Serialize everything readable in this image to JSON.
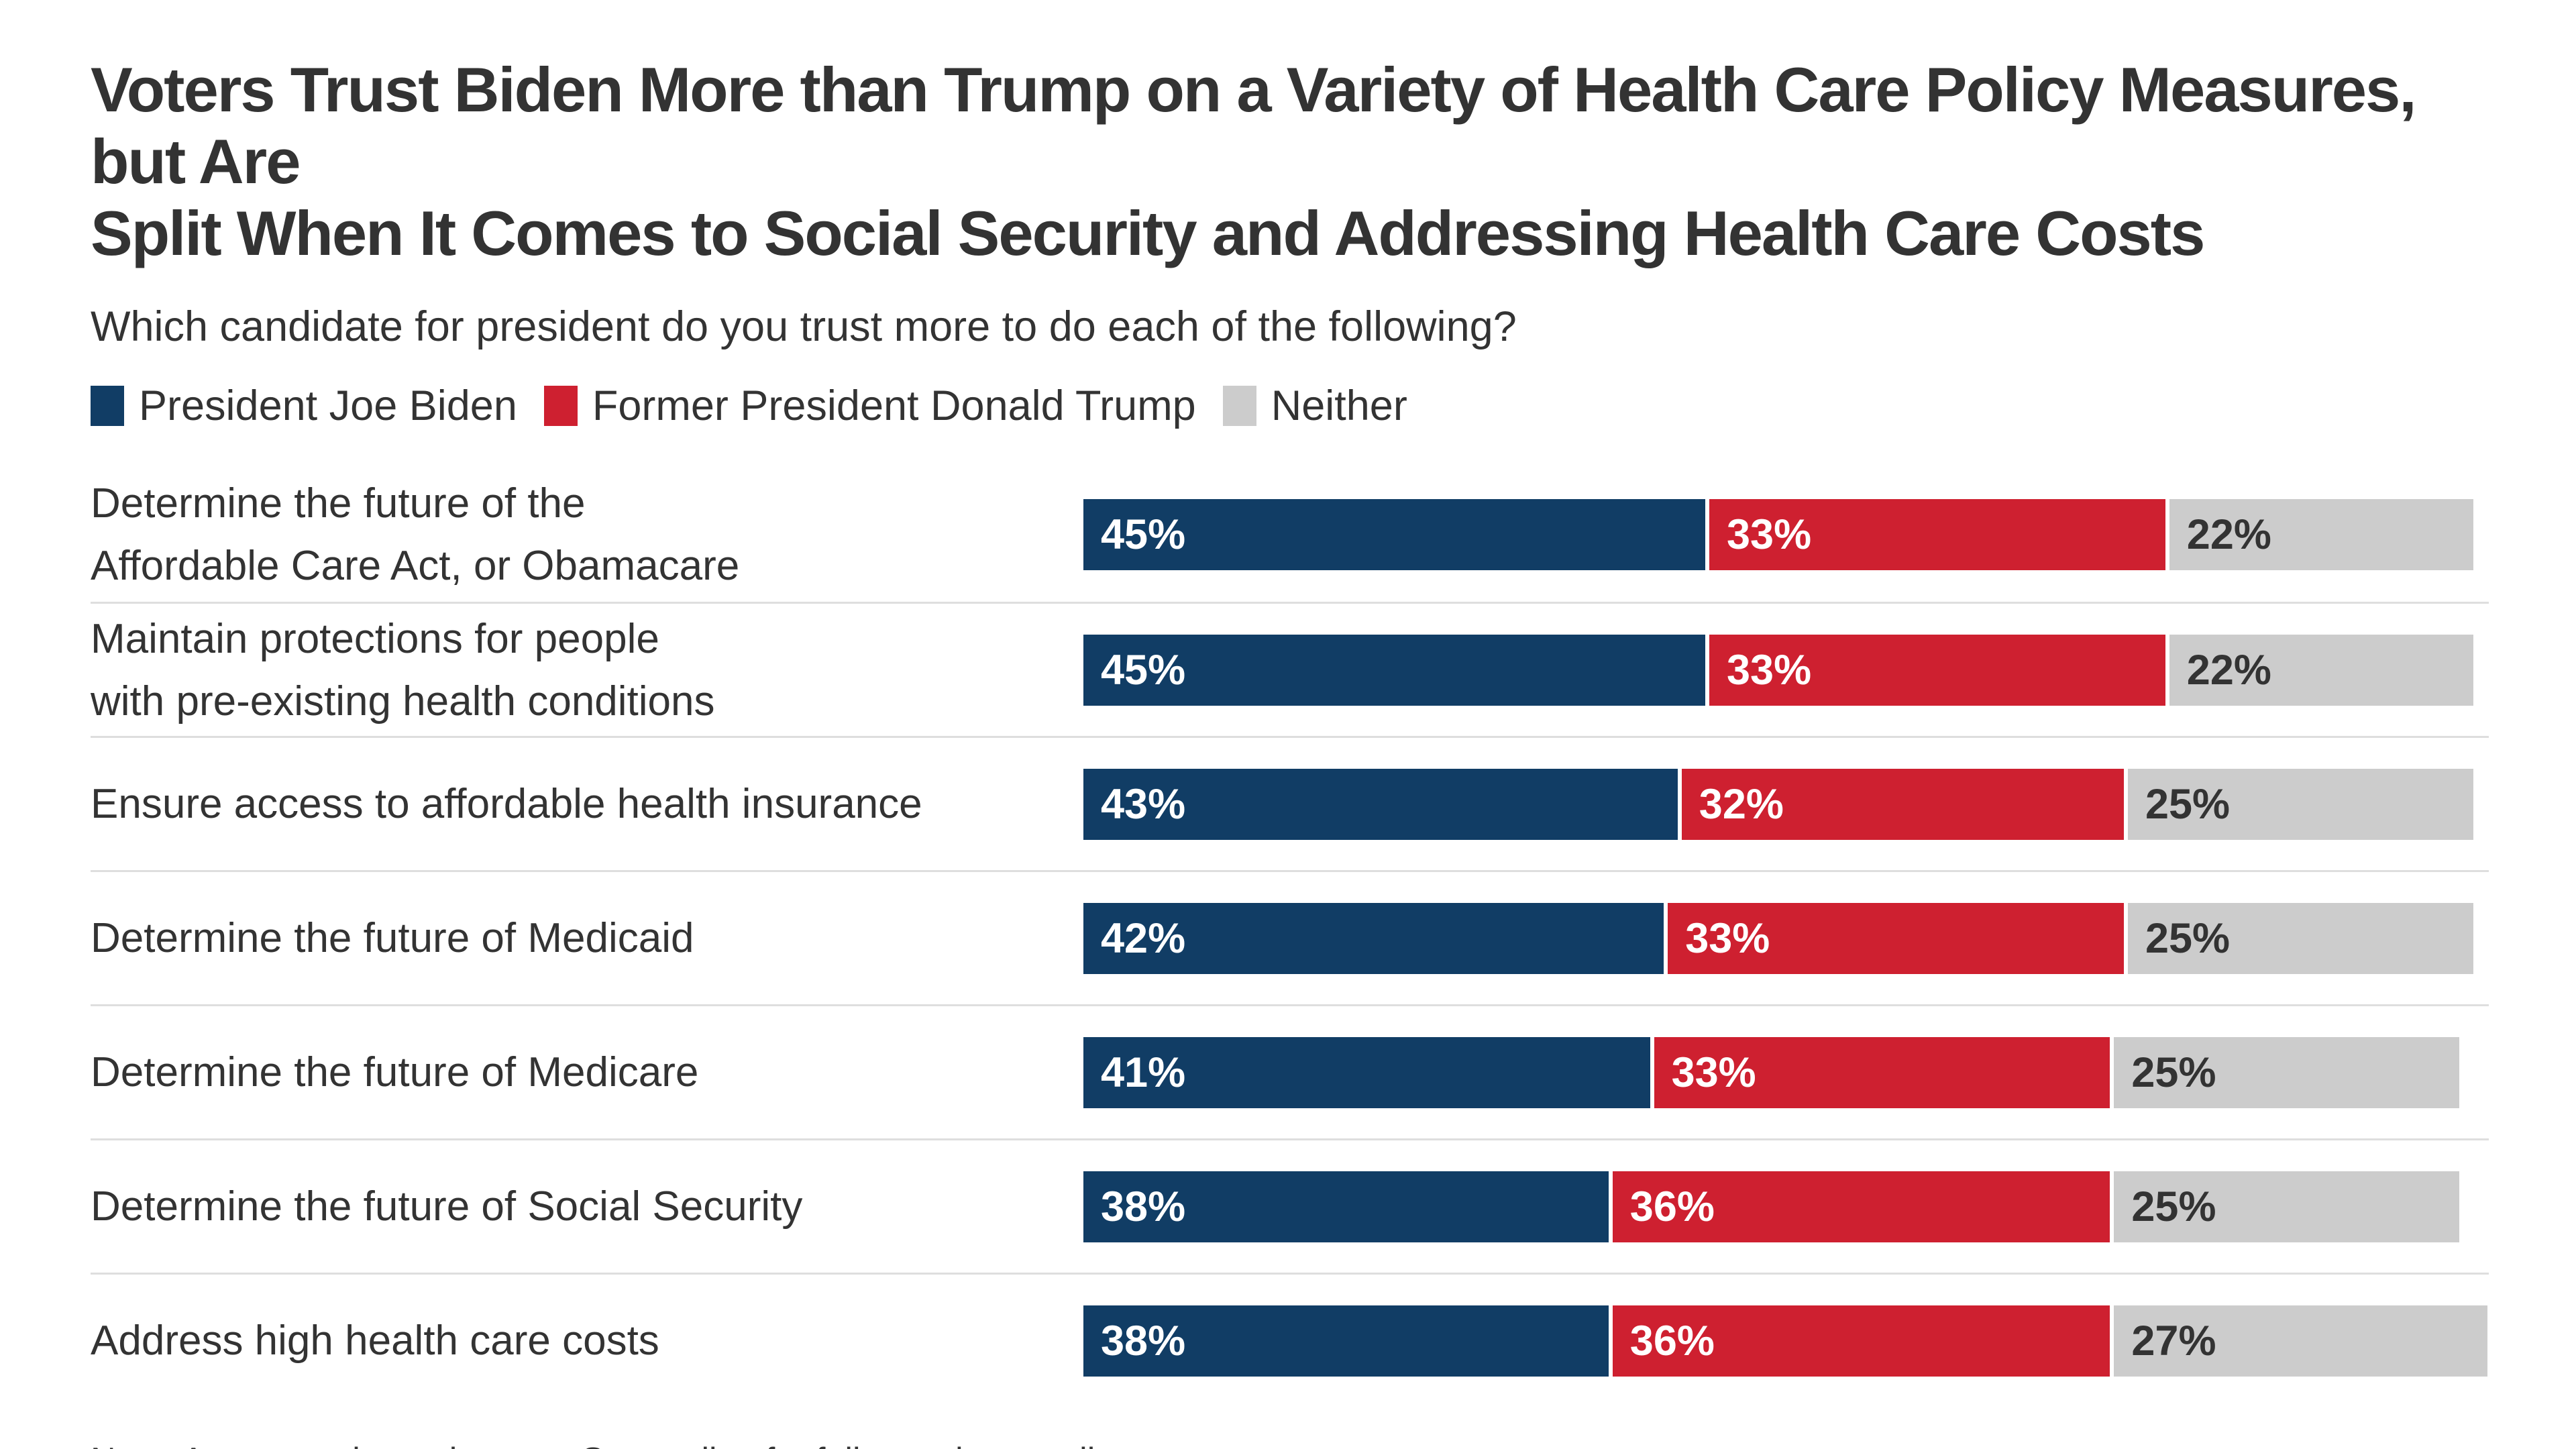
{
  "header": {
    "title_line1": "Voters Trust Biden More than Trump on a Variety of Health Care Policy Measures, but Are",
    "title_line2": "Split When It Comes to Social Security and Addressing Health Care Costs",
    "subtitle": "Which candidate for president do you trust more to do each of the following?"
  },
  "legend": [
    {
      "label": "President Joe Biden",
      "color": "#113D65"
    },
    {
      "label": "Former President Donald Trump",
      "color": "#CE2030"
    },
    {
      "label": "Neither",
      "color": "#CCCCCC"
    }
  ],
  "chart_data": {
    "type": "bar",
    "orientation": "horizontal",
    "stacked": true,
    "title": "Voters Trust Biden More than Trump on a Variety of Health Care Policy Measures, but Are Split When It Comes to Social Security and Addressing Health Care Costs",
    "subtitle": "Which candidate for president do you trust more to do each of the following?",
    "unit": "%",
    "value_suffix": "%",
    "xlim": [
      0,
      100
    ],
    "legend_position": "top",
    "grid": false,
    "categories": [
      "Determine the future of the\nAffordable Care Act, or Obamacare",
      "Maintain protections for people\nwith pre-existing health conditions",
      "Ensure access to affordable health insurance",
      "Determine the future of Medicaid",
      "Determine the future of Medicare",
      "Determine the future of Social Security",
      "Address high health care costs"
    ],
    "series": [
      {
        "name": "President Joe Biden",
        "color": "#113D65",
        "text_color": "#FFFFFF",
        "values": [
          45,
          45,
          43,
          42,
          41,
          38,
          38
        ]
      },
      {
        "name": "Former President Donald Trump",
        "color": "#CE2030",
        "text_color": "#FFFFFF",
        "values": [
          33,
          33,
          32,
          33,
          33,
          36,
          36
        ]
      },
      {
        "name": "Neither",
        "color": "#CCCCCC",
        "text_color": "#333333",
        "values": [
          22,
          22,
          25,
          25,
          25,
          25,
          27
        ]
      }
    ]
  },
  "note": "Note: Among registered voters. See topline for full question wording."
}
